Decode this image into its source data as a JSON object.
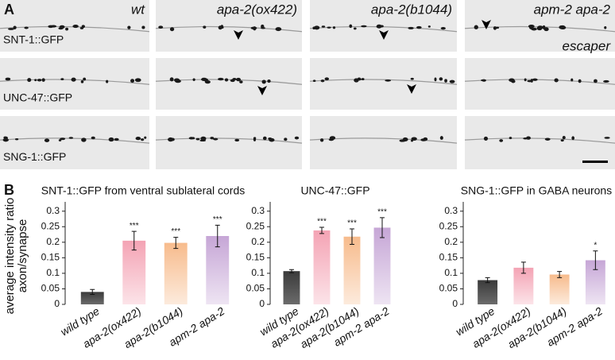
{
  "figure": {
    "panel_labels": [
      "A",
      "B"
    ],
    "genotypes": [
      "wt",
      "apa-2(ox422)",
      "apa-2(b1044)",
      "apm-2 apa-2"
    ],
    "markers": [
      "SNT-1::GFP",
      "UNC-47::GFP",
      "SNG-1::GFP"
    ],
    "escaper": "escaper",
    "ylabel": [
      "average intensity ratio",
      "axon/synapse"
    ]
  },
  "chart_data": [
    {
      "type": "bar",
      "title": "SNT-1::GFP from ventral sublateral cords",
      "categories": [
        "wild type",
        "apa-2(ox422)",
        "apa-2(b1044)",
        "apm-2 apa-2"
      ],
      "values": [
        0.04,
        0.205,
        0.198,
        0.22
      ],
      "errors": [
        0.008,
        0.03,
        0.018,
        0.035
      ],
      "annotations": [
        null,
        "***",
        "***",
        "***"
      ],
      "colors": [
        "#3a3a3a",
        "#f4a3b4",
        "#f7bb8c",
        "#c6a6d6"
      ],
      "ylim": [
        0,
        0.33
      ],
      "yticks": [
        0,
        0.05,
        0.1,
        0.15,
        0.2,
        0.25,
        0.3
      ]
    },
    {
      "type": "bar",
      "title": "UNC-47::GFP",
      "categories": [
        "wild type",
        "apa-2(ox422)",
        "apa-2(b1044)",
        "apm-2 apa-2"
      ],
      "values": [
        0.107,
        0.238,
        0.218,
        0.247
      ],
      "errors": [
        0.005,
        0.01,
        0.025,
        0.032
      ],
      "annotations": [
        null,
        "***",
        "***",
        "***"
      ],
      "colors": [
        "#3a3a3a",
        "#f4a3b4",
        "#f7bb8c",
        "#c6a6d6"
      ],
      "ylim": [
        0,
        0.33
      ],
      "yticks": [
        0,
        0.05,
        0.1,
        0.15,
        0.2,
        0.25,
        0.3
      ]
    },
    {
      "type": "bar",
      "title": "SNG-1::GFP in GABA neurons",
      "categories": [
        "wild type",
        "apa-2(ox422)",
        "apa-2(b1044)",
        "apm-2 apa-2"
      ],
      "values": [
        0.078,
        0.118,
        0.096,
        0.142
      ],
      "errors": [
        0.008,
        0.018,
        0.01,
        0.03
      ],
      "annotations": [
        null,
        null,
        null,
        "*"
      ],
      "colors": [
        "#3a3a3a",
        "#f4a3b4",
        "#f7bb8c",
        "#c6a6d6"
      ],
      "ylim": [
        0,
        0.33
      ],
      "yticks": [
        0,
        0.05,
        0.1,
        0.15,
        0.2,
        0.25,
        0.3
      ]
    }
  ]
}
